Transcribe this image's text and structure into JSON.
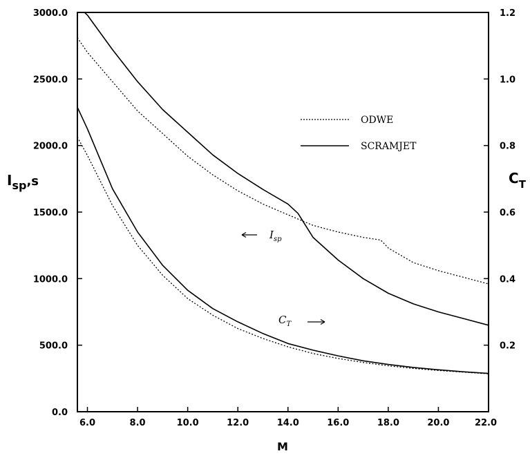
{
  "chart_data": {
    "type": "line",
    "title": "",
    "xlabel": "M",
    "ylabel": "I",
    "ylabel_sub": "sp",
    "ylabel_suffix": ",s",
    "y2label": "C",
    "y2label_sub": "T",
    "xlim": [
      5.6,
      22.0
    ],
    "ylim": [
      0,
      3000
    ],
    "y2lim": [
      0,
      1.2
    ],
    "x_ticks": [
      6,
      8,
      10,
      12,
      14,
      16,
      18,
      20,
      22
    ],
    "x_tick_labels": [
      "6.0",
      "8.0",
      "10.0",
      "12.0",
      "14.0",
      "16.0",
      "18.0",
      "20.0",
      "22.0"
    ],
    "y_ticks": [
      0,
      500,
      1000,
      1500,
      2000,
      2500,
      3000
    ],
    "y_tick_labels": [
      "0.0",
      "500.0",
      "1000.0",
      "1500.0",
      "2000.0",
      "2500.0",
      "3000.0"
    ],
    "y2_ticks": [
      0.2,
      0.4,
      0.6,
      0.8,
      1.0,
      1.2
    ],
    "y2_tick_labels": [
      "0.2",
      "0.4",
      "0.6",
      "0.8",
      "1.0",
      "1.2"
    ],
    "grid": false,
    "legend": {
      "placement": "upper-right",
      "entries": [
        {
          "label": "ODWE",
          "style": "dotted"
        },
        {
          "label": "SCRAMJET",
          "style": "solid"
        }
      ]
    },
    "annotations": [
      {
        "main": "I",
        "sub": "sp",
        "arrow": "left",
        "refers_to": "left axis"
      },
      {
        "main": "C",
        "sub": "T",
        "arrow": "right",
        "refers_to": "right axis"
      }
    ],
    "series": [
      {
        "name": "ODWE",
        "quantity": "Isp",
        "axis": "left",
        "style": "dotted",
        "x": [
          5.6,
          6.0,
          7.0,
          8.0,
          9.0,
          10.0,
          11.0,
          12.0,
          13.0,
          14.0,
          15.0,
          16.0,
          17.0,
          17.7,
          18.0,
          19.0,
          20.0,
          21.0,
          22.0
        ],
        "y": [
          2810,
          2700,
          2480,
          2260,
          2090,
          1920,
          1780,
          1660,
          1560,
          1480,
          1400,
          1350,
          1310,
          1290,
          1230,
          1120,
          1060,
          1010,
          960
        ]
      },
      {
        "name": "SCRAMJET",
        "quantity": "Isp",
        "axis": "left",
        "style": "solid",
        "x": [
          5.6,
          6.0,
          7.0,
          8.0,
          9.0,
          10.0,
          11.0,
          12.0,
          13.0,
          14.0,
          14.4,
          15.0,
          16.0,
          17.0,
          18.0,
          19.0,
          20.0,
          21.0,
          22.0
        ],
        "y": [
          3050,
          2980,
          2720,
          2480,
          2270,
          2100,
          1930,
          1790,
          1670,
          1560,
          1490,
          1310,
          1140,
          1000,
          890,
          810,
          750,
          700,
          650
        ]
      },
      {
        "name": "ODWE",
        "quantity": "CT",
        "axis": "right",
        "style": "dotted",
        "x": [
          5.6,
          6.0,
          7.0,
          8.0,
          9.0,
          10.0,
          11.0,
          12.0,
          13.0,
          14.0,
          15.0,
          16.0,
          17.0,
          18.0,
          19.0,
          20.0,
          21.0,
          22.0
        ],
        "y": [
          0.825,
          0.77,
          0.62,
          0.5,
          0.41,
          0.34,
          0.29,
          0.25,
          0.22,
          0.195,
          0.175,
          0.16,
          0.148,
          0.138,
          0.13,
          0.124,
          0.119,
          0.114
        ]
      },
      {
        "name": "SCRAMJET",
        "quantity": "CT",
        "axis": "right",
        "style": "solid",
        "x": [
          5.6,
          6.0,
          7.0,
          8.0,
          9.0,
          10.0,
          11.0,
          12.0,
          13.0,
          14.0,
          15.0,
          16.0,
          17.0,
          18.0,
          19.0,
          20.0,
          21.0,
          22.0
        ],
        "y": [
          0.915,
          0.85,
          0.67,
          0.54,
          0.44,
          0.365,
          0.31,
          0.27,
          0.235,
          0.205,
          0.185,
          0.168,
          0.153,
          0.142,
          0.133,
          0.126,
          0.12,
          0.115
        ]
      }
    ]
  }
}
